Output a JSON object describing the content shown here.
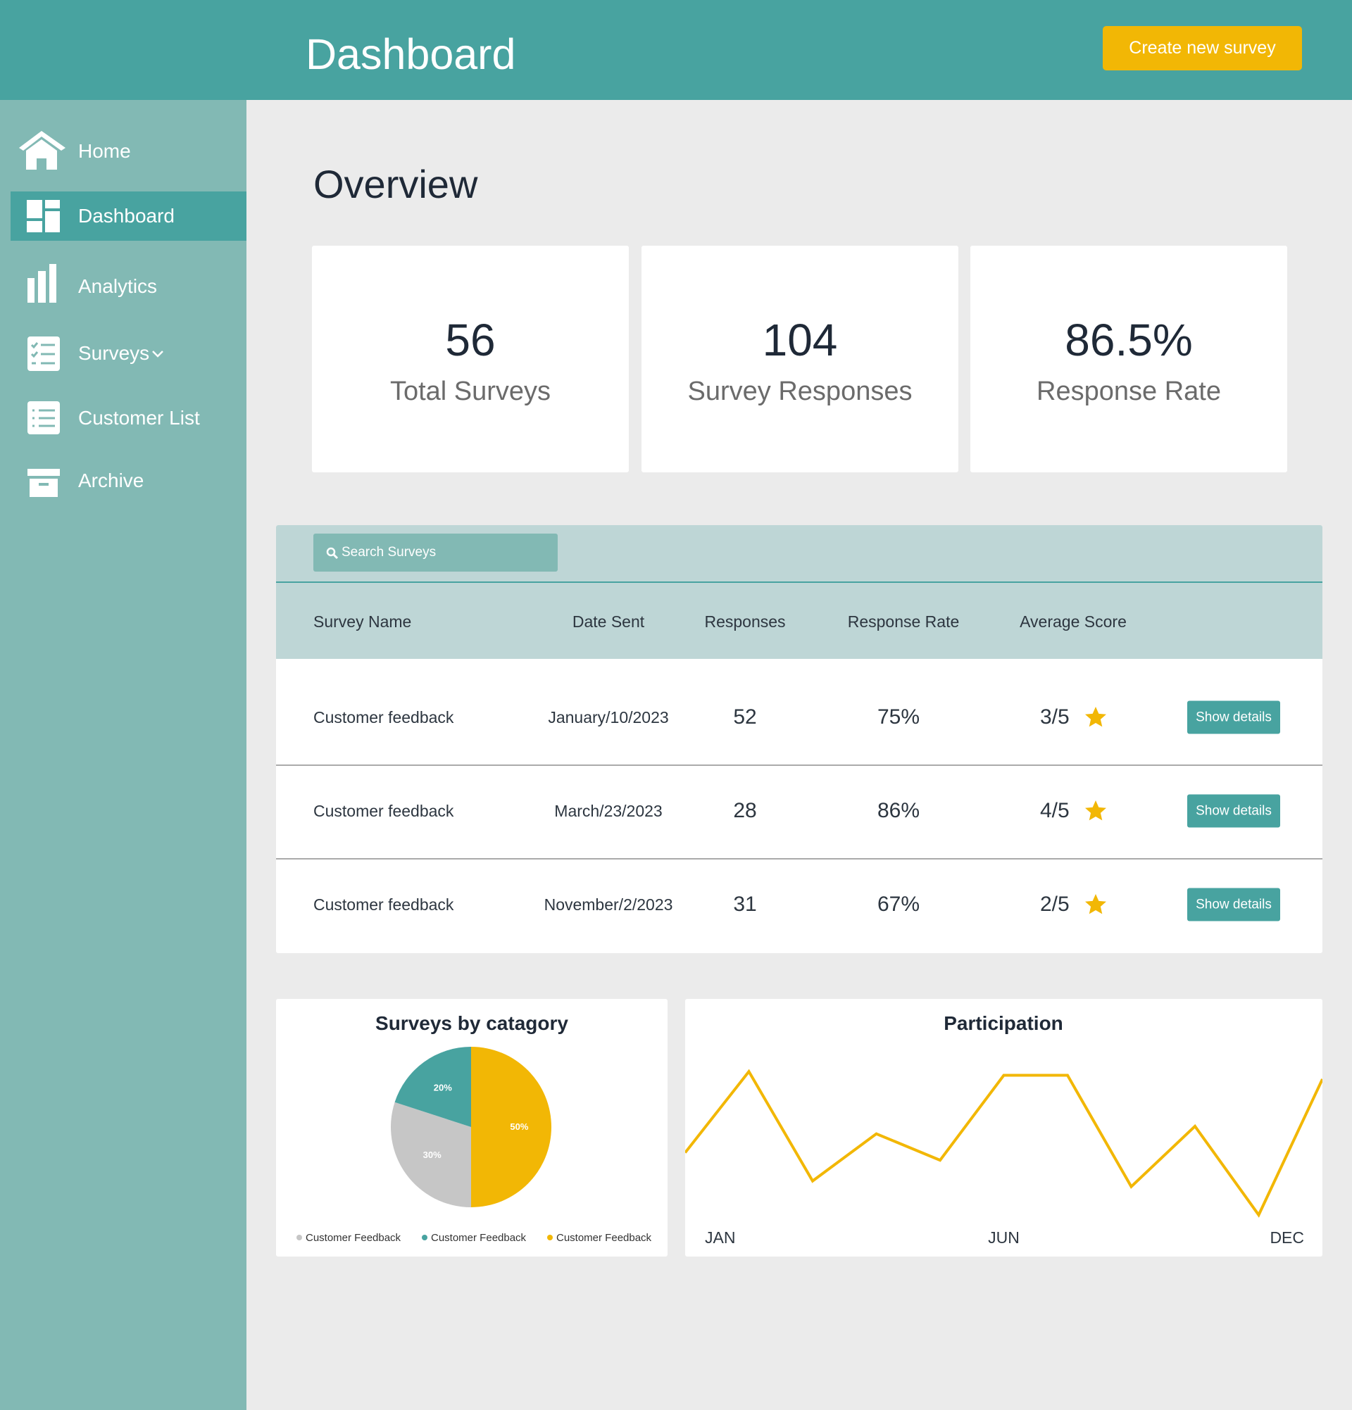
{
  "header": {
    "title": "Dashboard",
    "button": "Create new survey"
  },
  "sidebar": {
    "items": [
      "Home",
      "Dashboard",
      "Analytics",
      "Surveys",
      "Customer List",
      "Archive"
    ]
  },
  "overview": {
    "title": "Overview",
    "cards": [
      {
        "value": "56",
        "label": "Total Surveys"
      },
      {
        "value": "104",
        "label": "Survey Responses"
      },
      {
        "value": "86.5%",
        "label": "Response Rate"
      }
    ]
  },
  "table": {
    "search": "Search Surveys",
    "columns": [
      "Survey Name",
      "Date Sent",
      "Responses",
      "Response Rate",
      "Average Score"
    ],
    "rows": [
      [
        "Customer feedback",
        "January/10/2023",
        "52",
        "75%",
        "3/5",
        "Show details"
      ],
      [
        "Customer feedback",
        "March/23/2023",
        "28",
        "86%",
        "4/5",
        "Show details"
      ],
      [
        "Customer feedback",
        "November/2/2023",
        "31",
        "67%",
        "2/5",
        "Show details"
      ]
    ]
  },
  "chart_data": [
    {
      "type": "pie",
      "title": "Surveys by catagory",
      "labels": [
        "Customer Feedback",
        "Customer Feedback",
        "Customer Feedback"
      ],
      "values": [
        30,
        20,
        50
      ],
      "value_labels": [
        "30%",
        "20%",
        "50%"
      ],
      "colors": [
        "#c6c6c6",
        "#48a3a0",
        "#f2b705"
      ]
    },
    {
      "type": "line",
      "title": "Participation",
      "categories": [
        "JAN",
        null,
        null,
        null,
        null,
        "JUN",
        null,
        null,
        null,
        null,
        "DEC"
      ],
      "values": [
        42,
        85,
        27,
        52,
        38,
        83,
        83,
        24,
        56,
        9,
        81
      ],
      "ylim": [
        0,
        100
      ],
      "color": "#f2b705"
    }
  ]
}
